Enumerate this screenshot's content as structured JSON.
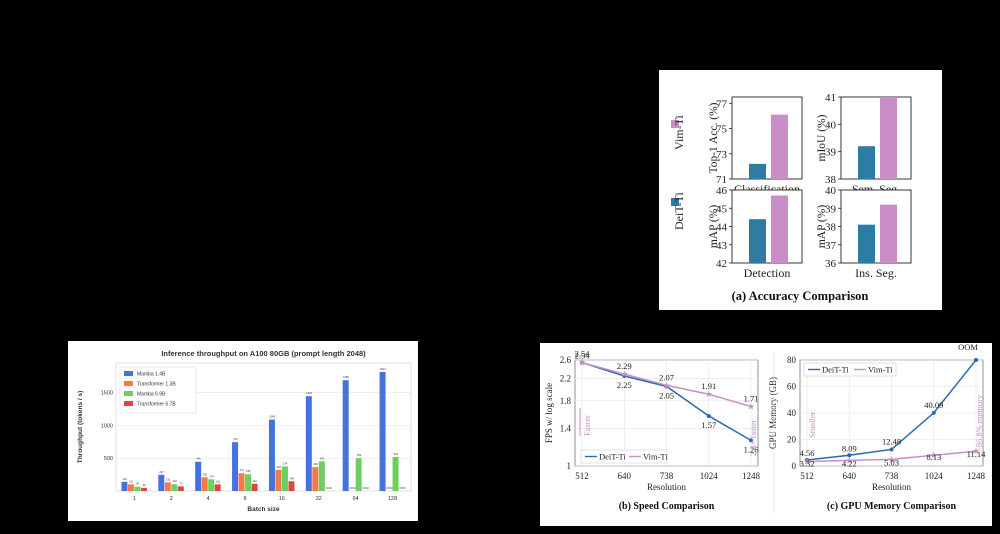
{
  "chart_data": [
    {
      "type": "bar",
      "title": "Inference throughput on A100 80GB (prompt length 2048)",
      "xlabel": "Batch size",
      "ylabel": "Throughput (tokens / s)",
      "categories": [
        "1",
        "2",
        "4",
        "8",
        "16",
        "32",
        "64",
        "128"
      ],
      "yticks": [
        500,
        1000,
        1500
      ],
      "ylim": [
        0,
        1950
      ],
      "legend_position": "top-left",
      "grid": true,
      "series": [
        {
          "name": "Mamba 1.4B",
          "color": "#4472e0",
          "values": [
            140,
            247,
            446,
            744,
            1089,
            1445,
            1688,
            1814
          ],
          "labels": [
            "140",
            "247",
            "446",
            "744",
            "1089",
            "1445",
            "1688",
            "1814"
          ]
        },
        {
          "name": "Transformer 1.3B",
          "color": "#ef7d45",
          "values": [
            101,
            131,
            209,
            271,
            323,
            364,
            0,
            0
          ],
          "labels": [
            "101",
            "131",
            "209",
            "271",
            "323",
            "364",
            "OOM",
            "OOM"
          ]
        },
        {
          "name": "Mamba 6.9B",
          "color": "#6ccf5f",
          "values": [
            66,
            103,
            178,
            256,
            374,
            453,
            499,
            519
          ],
          "labels": [
            "66",
            "103",
            "178",
            "256",
            "374",
            "453",
            "499",
            "519"
          ]
        },
        {
          "name": "Transformer 6.7B",
          "color": "#d9473f",
          "values": [
            48,
            70,
            101,
            110,
            148,
            0,
            0,
            0
          ],
          "labels": [
            "48",
            "70",
            "101",
            "110",
            "148",
            "OOM",
            "OOM",
            "OOM"
          ]
        }
      ]
    },
    {
      "type": "bar",
      "title": "(a) Accuracy Comparison",
      "legend": [
        {
          "name": "Vim-Ti",
          "color": "#c98ec7"
        },
        {
          "name": "DeiT-Ti",
          "color": "#2e7ba4"
        }
      ],
      "subplots": [
        {
          "name": "Classification",
          "ylabel": "Top-1 Acc. (%)",
          "yticks": [
            71,
            73,
            75,
            77
          ],
          "ylim": [
            71,
            77.5
          ],
          "values": {
            "DeiT-Ti": 72.2,
            "Vim-Ti": 76.1
          }
        },
        {
          "name": "Sem. Seg.",
          "ylabel": "mIoU (%)",
          "yticks": [
            38,
            39,
            40,
            41
          ],
          "ylim": [
            38,
            41
          ],
          "values": {
            "DeiT-Ti": 39.2,
            "Vim-Ti": 41.0
          }
        },
        {
          "name": "Detection",
          "ylabel": "mAP (%)",
          "yticks": [
            42,
            43,
            44,
            45,
            46
          ],
          "ylim": [
            42,
            46
          ],
          "values": {
            "DeiT-Ti": 44.4,
            "Vim-Ti": 45.7
          }
        },
        {
          "name": "Ins. Seg.",
          "ylabel": "mAP (%)",
          "yticks": [
            36,
            37,
            38,
            39,
            40
          ],
          "ylim": [
            36,
            40
          ],
          "values": {
            "DeiT-Ti": 38.1,
            "Vim-Ti": 39.2
          }
        }
      ]
    },
    {
      "type": "line",
      "title": "(b) Speed Comparison",
      "xlabel": "Resolution",
      "ylabel": "FPS w/ log scale",
      "x": [
        "512",
        "640",
        "738",
        "1024",
        "1248"
      ],
      "yticks": [
        "1",
        "1.4",
        "1.8",
        "2.2",
        "2.6"
      ],
      "ylim": [
        1,
        2.6
      ],
      "log_scale": true,
      "series": [
        {
          "name": "DeiT-Ti",
          "color": "#2a6ab0",
          "values": [
            2.54,
            2.25,
            2.05,
            1.57,
            1.26
          ]
        },
        {
          "name": "Vim-Ti",
          "color": "#c98ec7",
          "values": [
            2.54,
            2.29,
            2.07,
            1.91,
            1.71
          ]
        }
      ],
      "annotations": {
        "faster": "Faster",
        "speedup": "2.8× faster"
      }
    },
    {
      "type": "line",
      "title": "(c) GPU Memory Comparison",
      "xlabel": "Resolution",
      "ylabel": "GPU Memory (GB)",
      "x": [
        "512",
        "640",
        "738",
        "1024",
        "1248"
      ],
      "yticks": [
        0,
        20,
        40,
        60,
        80
      ],
      "ylim": [
        0,
        80
      ],
      "series": [
        {
          "name": "DeiT-Ti",
          "color": "#2a6ab0",
          "values": [
            4.56,
            8.09,
            12.48,
            40.09,
            80
          ],
          "labels": [
            "4.56",
            "8.09",
            "12.48",
            "40.09",
            "OOM"
          ]
        },
        {
          "name": "Vim-Ti",
          "color": "#c98ec7",
          "values": [
            3.32,
            4.22,
            5.03,
            8.13,
            11.14
          ],
          "labels": [
            "3.32",
            "4.22",
            "5.03",
            "8.13",
            "11.14"
          ]
        }
      ],
      "annotations": {
        "smaller": "Smaller",
        "memory": "-86.8% memory"
      }
    }
  ]
}
